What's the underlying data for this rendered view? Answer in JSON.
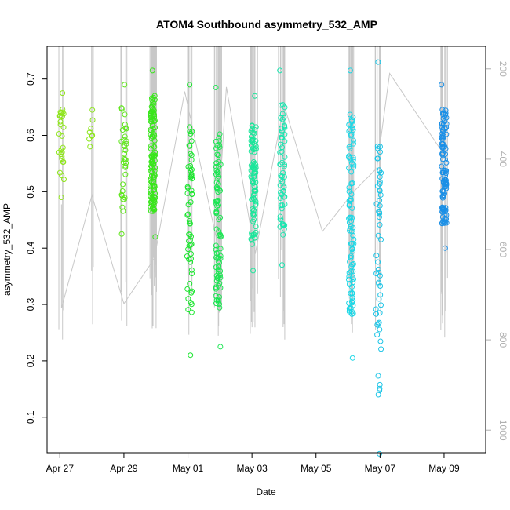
{
  "chart_data": {
    "type": "scatter",
    "title": "ATOM4 Southbound asymmetry_532_AMP",
    "xlabel": "Date",
    "ylabel": "asymmetry_532_AMP",
    "x_tick_labels": [
      "Apr 27",
      "Apr 29",
      "May 01",
      "May 03",
      "May 05",
      "May 07",
      "May 09"
    ],
    "x_tick_days": [
      0,
      2,
      4,
      6,
      8,
      10,
      12
    ],
    "xlim_days": [
      -0.4,
      13.3
    ],
    "y_ticks": [
      0.1,
      0.2,
      0.3,
      0.4,
      0.5,
      0.6,
      0.7
    ],
    "ylim": [
      0.037,
      0.758
    ],
    "y2_ticks": [
      200,
      400,
      600,
      800,
      1000
    ],
    "y2lim": [
      1050,
      150
    ],
    "grid": false,
    "legend": "none",
    "clusters": [
      {
        "day": 0.05,
        "y_min": 0.49,
        "y_max": 0.675,
        "color": "#8fe61a",
        "n": 28
      },
      {
        "day": 0.97,
        "y_min": 0.58,
        "y_max": 0.645,
        "color": "#8ce61a",
        "n": 8
      },
      {
        "day": 2.0,
        "y_min": 0.425,
        "y_max": 0.69,
        "color": "#5ee61a",
        "n": 35
      },
      {
        "day": 2.9,
        "y_min": 0.42,
        "y_max": 0.715,
        "color": "#38e61a",
        "n": 120
      },
      {
        "day": 4.05,
        "y_min": 0.21,
        "y_max": 0.69,
        "color": "#1ae62e",
        "n": 60
      },
      {
        "day": 4.95,
        "y_min": 0.225,
        "y_max": 0.685,
        "color": "#1ae652",
        "n": 90
      },
      {
        "day": 6.05,
        "y_min": 0.36,
        "y_max": 0.67,
        "color": "#1ae69a",
        "n": 85
      },
      {
        "day": 6.95,
        "y_min": 0.37,
        "y_max": 0.715,
        "color": "#1ae6b0",
        "n": 60
      },
      {
        "day": 9.1,
        "y_min": 0.205,
        "y_max": 0.715,
        "color": "#1ad7e6",
        "n": 95
      },
      {
        "day": 9.95,
        "y_min": 0.035,
        "y_max": 0.73,
        "color": "#1ac4e6",
        "n": 55
      },
      {
        "day": 12.0,
        "y_min": 0.4,
        "y_max": 0.69,
        "color": "#1a8fe6",
        "n": 110
      }
    ],
    "secondary_series": {
      "color": "#c8c8c8",
      "points": [
        [
          0.05,
          500
        ],
        [
          0.05,
          730
        ],
        [
          1.0,
          480
        ],
        [
          2.0,
          720
        ],
        [
          2.95,
          620
        ],
        [
          3.9,
          250
        ],
        [
          4.9,
          580
        ],
        [
          5.2,
          240
        ],
        [
          6.1,
          610
        ],
        [
          7.0,
          280
        ],
        [
          8.2,
          560
        ],
        [
          9.2,
          470
        ],
        [
          9.9,
          420
        ],
        [
          10.3,
          210
        ],
        [
          12.0,
          390
        ]
      ]
    }
  }
}
